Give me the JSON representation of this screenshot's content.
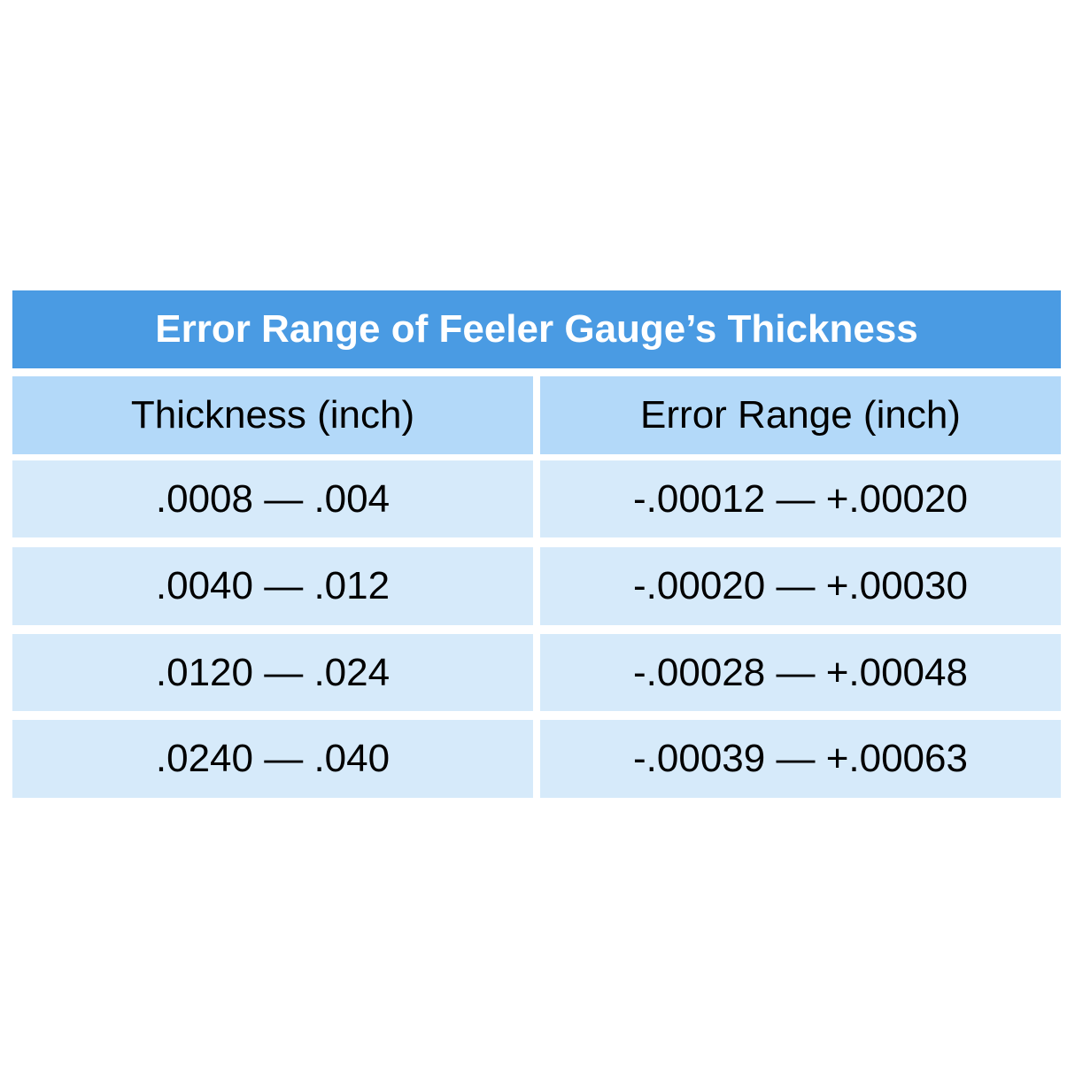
{
  "title": "Error Range of Feeler Gauge’s Thickness",
  "headers": [
    "Thickness (inch)",
    "Error Range (inch)"
  ],
  "rows": [
    [
      ".0008 — .004",
      "-.00012 — +.00020"
    ],
    [
      ".0040 — .012",
      "-.00020 — +.00030"
    ],
    [
      ".0120 — .024",
      "-.00028 — +.00048"
    ],
    [
      ".0240 — .040",
      "-.00039 — +.00063"
    ]
  ],
  "colors": {
    "title_bg": "#4a9be3",
    "header_bg": "#b3d9f9",
    "row_bg": "#d6eafa"
  }
}
